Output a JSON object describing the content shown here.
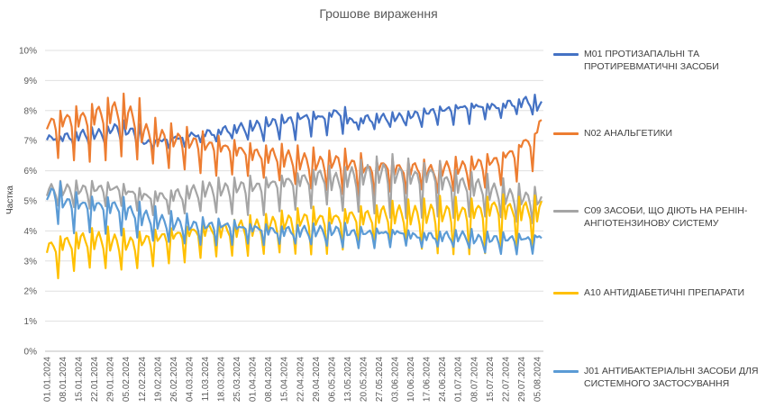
{
  "chart_data": {
    "type": "line",
    "title": "Грошове вираження",
    "ylabel": "Частка",
    "xlabel": "",
    "ylim": [
      0,
      10
    ],
    "y_ticks": [
      "0%",
      "1%",
      "2%",
      "3%",
      "4%",
      "5%",
      "6%",
      "7%",
      "8%",
      "9%",
      "10%"
    ],
    "x_ticks": [
      "01.01.2024",
      "08.01.2024",
      "15.01.2024",
      "22.01.2024",
      "29.01.2024",
      "05.02.2024",
      "12.02.2024",
      "19.02.2024",
      "26.02.2024",
      "04.03.2024",
      "11.03.2024",
      "18.03.2024",
      "25.03.2024",
      "01.04.2024",
      "08.04.2024",
      "15.04.2024",
      "22.04.2024",
      "29.04.2024",
      "06.05.2024",
      "13.05.2024",
      "20.05.2024",
      "27.05.2024",
      "03.06.2024",
      "10.06.2024",
      "17.06.2024",
      "24.06.2024",
      "01.07.2024",
      "08.07.2024",
      "15.07.2024",
      "22.07.2024",
      "29.07.2024",
      "05.08.2024"
    ],
    "x_start": "01.01.2024",
    "x_end": "07.08.2024",
    "grid": true,
    "legend_position": "right",
    "series": [
      {
        "name": "M01 ПРОТИЗАПАЛЬНІ ТА ПРОТИРЕВМАТИЧНІ ЗАСОБИ",
        "color": "#4472C4",
        "weekly_low": [
          6.8,
          6.7,
          6.7,
          6.8,
          6.9,
          6.8,
          6.8,
          6.8,
          6.8,
          6.9,
          6.9,
          7.0,
          7.0,
          7.0,
          7.1,
          7.1,
          7.2,
          7.2,
          7.2,
          7.3,
          7.3,
          7.4,
          7.5,
          7.5,
          7.6,
          7.6,
          7.6,
          7.7,
          7.7,
          7.8,
          7.8,
          7.8
        ],
        "weekly_peak": [
          7.2,
          7.3,
          7.4,
          7.4,
          7.6,
          7.5,
          7.0,
          7.1,
          7.2,
          7.3,
          7.4,
          7.5,
          7.6,
          7.7,
          7.8,
          7.9,
          8.0,
          8.0,
          8.2,
          7.8,
          7.9,
          7.9,
          7.9,
          8.0,
          8.1,
          8.2,
          8.3,
          8.3,
          8.3,
          8.4,
          8.5,
          8.3
        ]
      },
      {
        "name": "N02 АНАЛЬГЕТИКИ",
        "color": "#ED7D31",
        "weekly_low": [
          6.5,
          6.4,
          6.3,
          6.3,
          6.4,
          6.3,
          6.2,
          6.1,
          6.1,
          6.0,
          5.9,
          5.9,
          5.8,
          5.7,
          5.6,
          5.5,
          5.4,
          5.4,
          5.3,
          5.2,
          5.2,
          5.3,
          5.2,
          5.3,
          5.2,
          5.3,
          5.4,
          5.5,
          5.6,
          5.7,
          6.0,
          6.3
        ],
        "weekly_peak": [
          8.0,
          8.2,
          8.3,
          8.5,
          8.6,
          8.4,
          7.7,
          7.5,
          7.4,
          7.3,
          7.2,
          7.1,
          7.0,
          6.9,
          6.9,
          6.8,
          6.7,
          6.6,
          6.7,
          6.6,
          6.4,
          6.5,
          6.4,
          6.4,
          6.3,
          6.4,
          6.4,
          6.5,
          6.6,
          6.9,
          7.3,
          8.0
        ]
      },
      {
        "name": "C09 ЗАСОБИ, ЩО ДІЮТЬ НА РЕНІН-АНГІОТЕНЗИНОВУ СИСТЕМУ",
        "color": "#A5A5A5",
        "weekly_low": [
          4.8,
          4.8,
          4.8,
          4.9,
          4.9,
          4.7,
          4.5,
          4.5,
          4.5,
          4.6,
          4.6,
          4.6,
          4.6,
          4.6,
          4.7,
          4.7,
          4.7,
          4.8,
          4.6,
          4.6,
          4.6,
          4.5,
          4.5,
          4.5,
          4.5,
          4.4,
          4.4,
          4.4,
          4.4,
          4.3,
          4.3,
          4.3
        ],
        "weekly_peak": [
          5.6,
          5.6,
          5.6,
          5.6,
          5.6,
          5.5,
          5.4,
          5.4,
          5.5,
          5.6,
          5.7,
          5.7,
          5.8,
          5.8,
          5.9,
          6.0,
          6.1,
          6.2,
          6.1,
          6.3,
          6.4,
          6.5,
          6.4,
          6.3,
          6.4,
          6.1,
          6.0,
          5.9,
          5.7,
          5.5,
          5.4,
          5.3
        ]
      },
      {
        "name": "A10 АНТИДІАБЕТИЧНІ ПРЕПАРАТИ",
        "color": "#FFC000",
        "weekly_low": [
          2.4,
          2.6,
          2.7,
          2.7,
          2.7,
          2.8,
          2.9,
          3.0,
          3.0,
          3.1,
          3.1,
          3.1,
          3.1,
          3.2,
          3.3,
          3.3,
          3.3,
          3.3,
          3.4,
          3.4,
          3.4,
          3.5,
          3.5,
          3.4,
          3.3,
          3.3,
          3.3,
          3.3,
          3.4,
          3.4,
          3.4,
          3.4
        ],
        "weekly_peak": [
          3.9,
          4.0,
          4.1,
          4.1,
          4.0,
          3.9,
          4.0,
          4.1,
          4.2,
          4.3,
          4.4,
          4.4,
          4.5,
          4.5,
          4.6,
          4.7,
          4.8,
          4.8,
          4.8,
          4.9,
          4.9,
          5.0,
          5.0,
          5.0,
          5.1,
          5.1,
          5.1,
          5.2,
          5.3,
          5.2,
          5.2,
          5.2
        ]
      },
      {
        "name": "J01 АНТИБАКТЕРІАЛЬНІ ЗАСОБИ ДЛЯ СИСТЕМНОГО ЗАСТОСУВАННЯ",
        "color": "#5B9BD5",
        "weekly_low": [
          4.3,
          4.0,
          4.0,
          3.9,
          3.8,
          3.7,
          3.6,
          3.6,
          3.6,
          3.6,
          3.6,
          3.6,
          3.6,
          3.5,
          3.5,
          3.5,
          3.5,
          3.5,
          3.5,
          3.5,
          3.5,
          3.5,
          3.5,
          3.4,
          3.4,
          3.4,
          3.4,
          3.3,
          3.3,
          3.3,
          3.3,
          3.5
        ],
        "weekly_peak": [
          5.6,
          5.3,
          5.2,
          5.2,
          5.2,
          5.0,
          4.8,
          4.6,
          4.5,
          4.4,
          4.4,
          4.4,
          4.3,
          4.3,
          4.2,
          4.2,
          4.2,
          4.2,
          4.2,
          4.1,
          4.1,
          4.1,
          4.1,
          4.0,
          4.0,
          4.0,
          4.0,
          3.9,
          3.9,
          3.9,
          3.9,
          3.9
        ]
      }
    ]
  }
}
